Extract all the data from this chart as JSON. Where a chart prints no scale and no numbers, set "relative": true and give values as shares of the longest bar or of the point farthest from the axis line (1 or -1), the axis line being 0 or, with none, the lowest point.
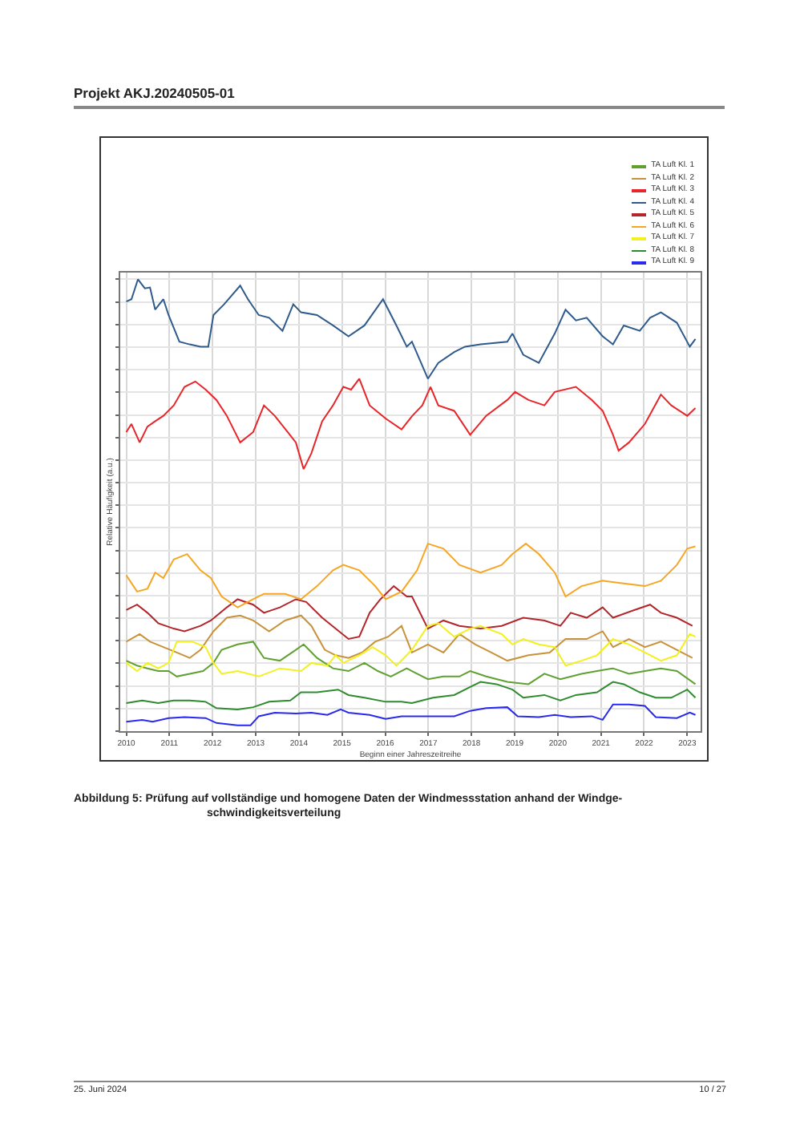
{
  "chart_data": {
    "type": "line",
    "relative": true,
    "xlabel": "Beginn einer Jahreszeitreihe",
    "ylabel": "Relative Häufigkeit (a.u.)",
    "annotations": [
      "Projekt AKJ.20240505-01",
      "Abbildung 5: Prüfung auf vollständige und homogene Daten der Windmessstation anhand der Windge-\nschwindigkeitsverteilung",
      "25. Juni 2024",
      "10 / 27"
    ],
    "xlim": [
      2009.86,
      2023.31
    ],
    "xticks": [
      2010,
      2011,
      2012,
      2013,
      2014,
      2015,
      2016,
      2017,
      2018,
      2019,
      2020,
      2021,
      2022,
      2023
    ],
    "grid": true,
    "legend": "top right",
    "tick_labels": "x",
    "line_style": "solid",
    "marker": "none",
    "series": [
      {
        "name": "TA Luft Kl. 1",
        "color": "#5fa030",
        "x": [
          2010.0,
          2010.25,
          2010.49,
          2010.74,
          2010.98,
          2011.17,
          2011.47,
          2011.78,
          2012.02,
          2012.21,
          2012.58,
          2012.94,
          2013.19,
          2013.56,
          2013.93,
          2014.11,
          2014.42,
          2014.79,
          2015.15,
          2015.52,
          2015.83,
          2016.13,
          2016.5,
          2016.62,
          2016.99,
          2017.35,
          2017.72,
          2017.97,
          2018.34,
          2018.83,
          2019.32,
          2019.69,
          2020.06,
          2020.55,
          2020.91,
          2021.28,
          2021.65,
          2022.02,
          2022.39,
          2022.76,
          2023.19
        ],
        "values": [
          0.156,
          0.145,
          0.139,
          0.133,
          0.133,
          0.121,
          0.127,
          0.133,
          0.151,
          0.18,
          0.192,
          0.198,
          0.162,
          0.156,
          0.18,
          0.192,
          0.162,
          0.139,
          0.133,
          0.151,
          0.133,
          0.121,
          0.139,
          0.133,
          0.115,
          0.121,
          0.121,
          0.133,
          0.121,
          0.109,
          0.104,
          0.127,
          0.115,
          0.127,
          0.133,
          0.139,
          0.127,
          0.133,
          0.139,
          0.133,
          0.104
        ]
      },
      {
        "name": "TA Luft Kl. 2",
        "color": "#c8923a",
        "x": [
          2010.0,
          2010.31,
          2010.55,
          2010.86,
          2011.17,
          2011.47,
          2011.72,
          2012.02,
          2012.33,
          2012.64,
          2012.94,
          2013.31,
          2013.68,
          2014.05,
          2014.29,
          2014.6,
          2014.85,
          2015.15,
          2015.46,
          2015.77,
          2016.07,
          2016.38,
          2016.62,
          2016.99,
          2017.35,
          2017.72,
          2018.09,
          2018.46,
          2018.83,
          2019.32,
          2019.81,
          2020.18,
          2020.67,
          2021.04,
          2021.28,
          2021.65,
          2022.02,
          2022.39,
          2022.76,
          2023.12
        ],
        "values": [
          0.198,
          0.215,
          0.198,
          0.186,
          0.174,
          0.162,
          0.18,
          0.221,
          0.251,
          0.256,
          0.245,
          0.221,
          0.245,
          0.256,
          0.233,
          0.18,
          0.168,
          0.162,
          0.174,
          0.198,
          0.209,
          0.233,
          0.174,
          0.192,
          0.174,
          0.215,
          0.192,
          0.174,
          0.156,
          0.168,
          0.174,
          0.204,
          0.204,
          0.221,
          0.186,
          0.204,
          0.186,
          0.198,
          0.18,
          0.162
        ]
      },
      {
        "name": "TA Luft Kl. 3",
        "color": "#e8262a",
        "x": [
          2010.0,
          2010.12,
          2010.31,
          2010.49,
          2010.67,
          2010.86,
          2011.1,
          2011.35,
          2011.6,
          2011.84,
          2012.09,
          2012.33,
          2012.64,
          2012.94,
          2013.19,
          2013.44,
          2013.74,
          2013.93,
          2014.11,
          2014.29,
          2014.54,
          2014.79,
          2015.03,
          2015.21,
          2015.4,
          2015.64,
          2016.01,
          2016.38,
          2016.63,
          2016.86,
          2017.05,
          2017.23,
          2017.6,
          2017.97,
          2018.34,
          2018.83,
          2019.01,
          2019.32,
          2019.69,
          2019.93,
          2020.42,
          2020.79,
          2021.04,
          2021.28,
          2021.41,
          2021.65,
          2022.02,
          2022.39,
          2022.63,
          2023.0,
          2023.19
        ],
        "values": [
          0.662,
          0.68,
          0.639,
          0.674,
          0.686,
          0.698,
          0.721,
          0.762,
          0.774,
          0.756,
          0.733,
          0.698,
          0.639,
          0.662,
          0.721,
          0.698,
          0.662,
          0.639,
          0.58,
          0.615,
          0.686,
          0.721,
          0.762,
          0.756,
          0.78,
          0.721,
          0.692,
          0.668,
          0.698,
          0.721,
          0.762,
          0.721,
          0.709,
          0.656,
          0.698,
          0.733,
          0.751,
          0.733,
          0.721,
          0.751,
          0.762,
          0.733,
          0.709,
          0.656,
          0.621,
          0.639,
          0.68,
          0.745,
          0.721,
          0.698,
          0.715
        ]
      },
      {
        "name": "TA Luft Kl. 4",
        "color": "#2f5b8c",
        "x": [
          2010.0,
          2010.12,
          2010.27,
          2010.43,
          2010.55,
          2010.67,
          2010.86,
          2010.98,
          2011.23,
          2011.47,
          2011.72,
          2011.9,
          2012.02,
          2012.27,
          2012.64,
          2012.82,
          2013.07,
          2013.31,
          2013.62,
          2013.87,
          2014.05,
          2014.42,
          2014.79,
          2015.15,
          2015.52,
          2015.95,
          2016.26,
          2016.5,
          2016.62,
          2016.99,
          2017.23,
          2017.6,
          2017.85,
          2018.21,
          2018.83,
          2018.95,
          2019.2,
          2019.56,
          2019.93,
          2020.18,
          2020.42,
          2020.67,
          2021.04,
          2021.28,
          2021.53,
          2021.9,
          2022.14,
          2022.39,
          2022.76,
          2023.06,
          2023.19
        ],
        "values": [
          0.951,
          0.956,
          1.0,
          0.98,
          0.982,
          0.933,
          0.956,
          0.921,
          0.862,
          0.856,
          0.851,
          0.851,
          0.921,
          0.945,
          0.986,
          0.956,
          0.921,
          0.915,
          0.886,
          0.945,
          0.927,
          0.921,
          0.898,
          0.874,
          0.898,
          0.956,
          0.898,
          0.851,
          0.862,
          0.78,
          0.815,
          0.839,
          0.851,
          0.856,
          0.862,
          0.88,
          0.833,
          0.815,
          0.88,
          0.933,
          0.909,
          0.915,
          0.874,
          0.856,
          0.898,
          0.886,
          0.915,
          0.927,
          0.904,
          0.851,
          0.868
        ]
      },
      {
        "name": "TA Luft Kl. 5",
        "color": "#b3262b",
        "x": [
          2010.0,
          2010.25,
          2010.49,
          2010.74,
          2011.1,
          2011.35,
          2011.72,
          2011.96,
          2012.33,
          2012.58,
          2012.94,
          2013.19,
          2013.56,
          2013.93,
          2014.17,
          2014.54,
          2014.85,
          2015.15,
          2015.4,
          2015.64,
          2015.89,
          2016.2,
          2016.5,
          2016.62,
          2016.99,
          2017.35,
          2017.72,
          2018.21,
          2018.7,
          2019.2,
          2019.69,
          2020.06,
          2020.3,
          2020.67,
          2021.04,
          2021.28,
          2021.77,
          2022.14,
          2022.39,
          2022.76,
          2023.12
        ],
        "values": [
          0.268,
          0.28,
          0.262,
          0.239,
          0.227,
          0.221,
          0.233,
          0.245,
          0.274,
          0.292,
          0.28,
          0.262,
          0.274,
          0.292,
          0.286,
          0.251,
          0.227,
          0.204,
          0.209,
          0.262,
          0.292,
          0.321,
          0.298,
          0.298,
          0.227,
          0.245,
          0.233,
          0.227,
          0.233,
          0.251,
          0.245,
          0.233,
          0.262,
          0.251,
          0.274,
          0.251,
          0.268,
          0.28,
          0.262,
          0.251,
          0.233
        ]
      },
      {
        "name": "TA Luft Kl. 6",
        "color": "#f5a623",
        "x": [
          2010.0,
          2010.25,
          2010.49,
          2010.67,
          2010.86,
          2011.1,
          2011.41,
          2011.72,
          2011.96,
          2012.21,
          2012.58,
          2012.94,
          2013.19,
          2013.68,
          2014.05,
          2014.42,
          2014.79,
          2015.03,
          2015.4,
          2015.77,
          2016.01,
          2016.38,
          2016.74,
          2016.99,
          2017.35,
          2017.72,
          2018.21,
          2018.7,
          2018.95,
          2019.26,
          2019.56,
          2019.93,
          2020.18,
          2020.55,
          2021.04,
          2021.53,
          2022.02,
          2022.39,
          2022.76,
          2023.0,
          2023.19
        ],
        "values": [
          0.345,
          0.309,
          0.315,
          0.351,
          0.339,
          0.38,
          0.392,
          0.356,
          0.339,
          0.298,
          0.274,
          0.292,
          0.304,
          0.304,
          0.292,
          0.321,
          0.356,
          0.368,
          0.356,
          0.321,
          0.292,
          0.309,
          0.356,
          0.415,
          0.404,
          0.368,
          0.351,
          0.368,
          0.392,
          0.415,
          0.392,
          0.351,
          0.298,
          0.321,
          0.333,
          0.327,
          0.321,
          0.333,
          0.368,
          0.404,
          0.409
        ]
      },
      {
        "name": "TA Luft Kl. 7",
        "color": "#f2f01e",
        "x": [
          2010.0,
          2010.25,
          2010.49,
          2010.74,
          2010.98,
          2011.17,
          2011.53,
          2011.84,
          2012.02,
          2012.21,
          2012.58,
          2013.07,
          2013.56,
          2014.05,
          2014.29,
          2014.66,
          2014.85,
          2015.03,
          2015.4,
          2015.71,
          2016.01,
          2016.26,
          2016.62,
          2016.99,
          2017.23,
          2017.6,
          2017.97,
          2018.21,
          2018.7,
          2018.95,
          2019.2,
          2019.56,
          2019.93,
          2020.18,
          2020.55,
          2020.91,
          2021.28,
          2021.65,
          2022.02,
          2022.39,
          2022.76,
          2023.06,
          2023.19
        ],
        "values": [
          0.151,
          0.133,
          0.151,
          0.139,
          0.151,
          0.198,
          0.198,
          0.186,
          0.151,
          0.127,
          0.133,
          0.121,
          0.139,
          0.133,
          0.151,
          0.145,
          0.168,
          0.151,
          0.168,
          0.186,
          0.168,
          0.145,
          0.18,
          0.233,
          0.239,
          0.209,
          0.227,
          0.233,
          0.215,
          0.192,
          0.204,
          0.192,
          0.186,
          0.145,
          0.156,
          0.168,
          0.204,
          0.192,
          0.174,
          0.156,
          0.168,
          0.215,
          0.209
        ]
      },
      {
        "name": "TA Luft Kl. 8",
        "color": "#2e8b2e",
        "x": [
          2010.0,
          2010.37,
          2010.74,
          2011.1,
          2011.47,
          2011.84,
          2012.09,
          2012.58,
          2012.94,
          2013.31,
          2013.8,
          2014.05,
          2014.42,
          2014.91,
          2015.15,
          2015.52,
          2016.01,
          2016.38,
          2016.62,
          2017.11,
          2017.6,
          2017.97,
          2018.21,
          2018.58,
          2018.95,
          2019.2,
          2019.69,
          2020.06,
          2020.42,
          2020.91,
          2021.28,
          2021.53,
          2021.9,
          2022.27,
          2022.63,
          2023.0,
          2023.19
        ],
        "values": [
          0.062,
          0.068,
          0.062,
          0.068,
          0.068,
          0.065,
          0.051,
          0.048,
          0.053,
          0.065,
          0.068,
          0.086,
          0.086,
          0.092,
          0.08,
          0.074,
          0.065,
          0.065,
          0.062,
          0.074,
          0.08,
          0.098,
          0.109,
          0.104,
          0.092,
          0.074,
          0.08,
          0.068,
          0.08,
          0.086,
          0.109,
          0.104,
          0.086,
          0.074,
          0.074,
          0.092,
          0.074
        ]
      },
      {
        "name": "TA Luft Kl. 9",
        "color": "#2a2aef",
        "x": [
          2010.0,
          2010.37,
          2010.61,
          2010.98,
          2011.35,
          2011.84,
          2012.09,
          2012.58,
          2012.88,
          2013.07,
          2013.44,
          2013.93,
          2014.29,
          2014.66,
          2014.97,
          2015.15,
          2015.64,
          2016.01,
          2016.38,
          2017.11,
          2017.6,
          2017.97,
          2018.34,
          2018.83,
          2019.07,
          2019.56,
          2019.93,
          2020.3,
          2020.79,
          2021.04,
          2021.28,
          2021.65,
          2022.02,
          2022.27,
          2022.76,
          2023.06,
          2023.19
        ],
        "values": [
          0.021,
          0.025,
          0.021,
          0.029,
          0.031,
          0.029,
          0.018,
          0.013,
          0.013,
          0.033,
          0.041,
          0.039,
          0.041,
          0.036,
          0.048,
          0.041,
          0.036,
          0.027,
          0.033,
          0.033,
          0.033,
          0.045,
          0.051,
          0.053,
          0.033,
          0.031,
          0.036,
          0.031,
          0.033,
          0.025,
          0.059,
          0.059,
          0.056,
          0.031,
          0.029,
          0.041,
          0.036
        ]
      }
    ]
  }
}
